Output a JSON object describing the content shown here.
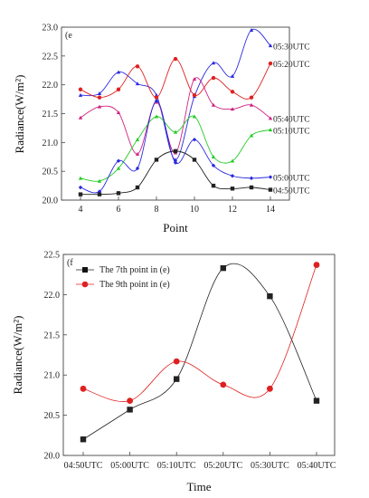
{
  "chart_data": [
    {
      "type": "line",
      "panel_label": "(e",
      "xlabel": "Point",
      "ylabel": "Radiance(W/m²)",
      "xlim": [
        3,
        15
      ],
      "ylim": [
        20.0,
        23.0
      ],
      "xticks": [
        "4",
        "6",
        "8",
        "10",
        "12",
        "14"
      ],
      "yticks": [
        "20.0",
        "20.5",
        "21.0",
        "21.5",
        "22.0",
        "22.5",
        "23.0"
      ],
      "grid": false,
      "x": [
        4,
        5,
        6,
        7,
        8,
        9,
        10,
        11,
        12,
        13,
        14
      ],
      "series": [
        {
          "name": "05:30UTC",
          "color": "#2a2ae0",
          "marker": "triangle",
          "values": [
            21.82,
            21.85,
            22.22,
            22.02,
            21.82,
            20.7,
            21.8,
            22.38,
            22.15,
            22.95,
            22.68
          ]
        },
        {
          "name": "05:20UTC",
          "color": "#e02020",
          "marker": "circle",
          "values": [
            21.92,
            21.78,
            21.92,
            22.32,
            21.78,
            22.45,
            21.82,
            22.12,
            21.88,
            21.78,
            22.37
          ]
        },
        {
          "name": "05:40UTC",
          "color": "#d02080",
          "marker": "triangle",
          "values": [
            21.43,
            21.62,
            21.52,
            20.8,
            21.7,
            20.82,
            22.1,
            21.65,
            21.58,
            21.65,
            21.42
          ]
        },
        {
          "name": "05:10UTC",
          "color": "#22cc22",
          "marker": "triangle",
          "values": [
            20.38,
            20.33,
            20.55,
            21.05,
            21.45,
            21.18,
            21.45,
            20.75,
            20.68,
            21.12,
            21.22
          ]
        },
        {
          "name": "05:00UTC",
          "color": "#2a2ae0",
          "marker": "diamond",
          "values": [
            20.22,
            20.15,
            20.68,
            20.55,
            21.72,
            20.65,
            21.05,
            20.6,
            20.42,
            20.38,
            20.4
          ]
        },
        {
          "name": "04:50UTC",
          "color": "#222222",
          "marker": "square",
          "values": [
            20.1,
            20.1,
            20.12,
            20.22,
            20.7,
            20.85,
            20.7,
            20.25,
            20.2,
            20.22,
            20.18
          ]
        }
      ]
    },
    {
      "type": "line",
      "panel_label": "(f",
      "xlabel": "Time",
      "ylabel": "Radiance(W/m²)",
      "ylim": [
        20.0,
        22.5
      ],
      "yticks": [
        "20.0",
        "20.5",
        "21.0",
        "21.5",
        "22.0",
        "22.5"
      ],
      "grid": false,
      "legend_position": "top-left",
      "categories": [
        "04:50UTC",
        "05:00UTC",
        "05:10UTC",
        "05:20UTC",
        "05:30UTC",
        "05:40UTC"
      ],
      "series": [
        {
          "name": "The 7th point in (e)",
          "color": "#222222",
          "marker": "square",
          "values": [
            20.2,
            20.57,
            20.95,
            22.33,
            21.98,
            20.68
          ]
        },
        {
          "name": "The 9th point in (e)",
          "color": "#e02020",
          "marker": "circle",
          "values": [
            20.83,
            20.68,
            21.17,
            20.88,
            20.83,
            22.37
          ]
        }
      ]
    }
  ]
}
